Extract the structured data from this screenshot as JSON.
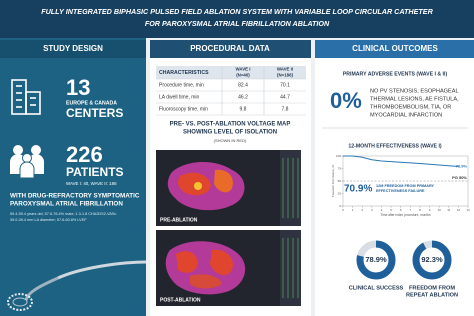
{
  "header": {
    "title_lines": [
      "FULLY INTEGRATED BIPHASIC PULSED FIELD ABLATION SYSTEM WITH VARIABLE LOOP CIRCULAR CATHETER",
      "FOR PAROXYSMAL ATRIAL FIBRILLATION ABLATION"
    ]
  },
  "study_design": {
    "title": "STUDY DESIGN",
    "centers": {
      "number": "13",
      "region": "EUROPE & CANADA",
      "label": "CENTERS"
    },
    "patients": {
      "number": "226",
      "label": "PATIENTS",
      "waves": "WAVE I: 40, WAVE II: 186"
    },
    "population_lines": [
      "WITH DRUG-REFRACTORY SYMPTOMATIC",
      "PAROXYSMAL ATRIAL FIBRILLATION"
    ],
    "detail_lines": [
      "59.4-59.4 years old; 57.5-76.4% male; 1.3-1.8 CHA2DS2-VASc",
      "39.0-39.4 mm LA diameter; 57.6-60.8% LVEF"
    ]
  },
  "procedural_data": {
    "title": "PROCEDURAL DATA",
    "table": {
      "header": [
        [
          "CHARACTERISTICS"
        ],
        [
          "WAVE I",
          "(N=40)"
        ],
        [
          "WAVE II",
          "(N=186)"
        ]
      ],
      "rows": [
        [
          "Procedure time, min",
          "82.4",
          "70.1"
        ],
        [
          "LA dwell time, min",
          "46.2",
          "44.7"
        ],
        [
          "Fluoroscopy time, min",
          "9.8",
          "7.8"
        ]
      ]
    },
    "map_title_lines": [
      "PRE- VS. POST-ABLATION VOLTAGE MAP",
      "SHOWING LEVEL OF ISOLATION"
    ],
    "map_note": "(SHOWN IN RED)",
    "image_labels": [
      "PRE-ABLATION",
      "POST-ABLATION"
    ]
  },
  "clinical_outcomes": {
    "title": "CLINICAL OUTCOMES",
    "adverse_title": "PRIMARY ADVERSE EVENTS (WAVE I & II)",
    "adverse_rate": "0%",
    "adverse_lines": [
      "NO PV STENOSIS, ESOPHAGEAL",
      "THERMAL LESIONS, AE FISTULA,",
      "THROMBOEMBOLISM, TIA, OR",
      "MYOCARDIAL INFARCTION"
    ],
    "effectiveness_title": "12-MONTH EFFECTIVENESS (WAVE I)",
    "freedom_rate": "70.9%",
    "freedom_lines": [
      "12M FREEDOM FROM PRIMARY",
      "EFFECTIVENESS FAILURE"
    ]
  },
  "chart_data": [
    {
      "type": "line",
      "x_label": "Time after index procedure, months",
      "y_label": "Freedom from failure, %",
      "x": [
        0,
        1,
        2,
        3,
        4,
        6,
        8,
        10,
        12
      ],
      "series": [
        {
          "color": "#2a77b5",
          "values": [
            100,
            100,
            97.5,
            92.5,
            90,
            87.5,
            85,
            82,
            78.9
          ]
        }
      ],
      "end_label": "78.9%",
      "goal": 50,
      "goal_label": "PG 50%",
      "xlim": [
        0,
        13
      ],
      "xticks": [
        0,
        1,
        2,
        3,
        4,
        5,
        6,
        7,
        8,
        9,
        10,
        11,
        12,
        13
      ],
      "ylim": [
        0,
        100
      ],
      "yticks": [
        0,
        25,
        50,
        75,
        100
      ]
    },
    {
      "type": "donut",
      "values": [
        78.9
      ],
      "value_labels": [
        "78.9%"
      ],
      "label_lines": [
        "CLINICAL SUCCESS"
      ],
      "color": "#1f5f9a"
    },
    {
      "type": "donut",
      "values": [
        92.3
      ],
      "value_labels": [
        "92.3%"
      ],
      "label_lines": [
        "FREEDOM FROM",
        "REPEAT ABLATION"
      ],
      "color": "#1f5f9a"
    }
  ]
}
